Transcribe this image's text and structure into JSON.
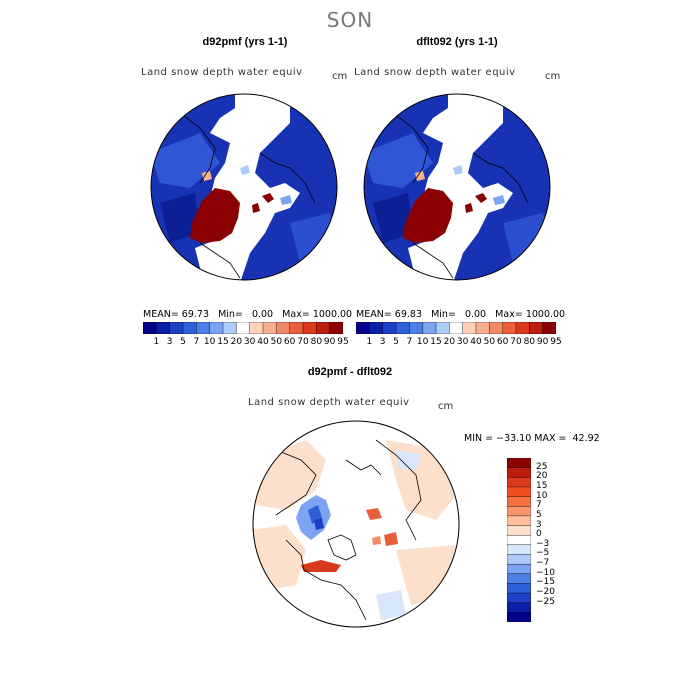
{
  "figure": {
    "season": "SON"
  },
  "panels": {
    "left": {
      "title": "d92pmf (yrs 1-1)",
      "variable": "Land snow depth water equiv",
      "units": "cm",
      "stats": {
        "mean_label": "MEAN=",
        "mean": "69.73",
        "min_label": "Min=",
        "min": "0.00",
        "max_label": "Max=",
        "max": "1000.00"
      }
    },
    "right": {
      "title": "dflt092 (yrs 1-1)",
      "variable": "Land snow depth water equiv",
      "units": "cm",
      "stats": {
        "mean_label": "MEAN=",
        "mean": "69.83",
        "min_label": "Min=",
        "min": "0.00",
        "max_label": "Max=",
        "max": "1000.00"
      }
    },
    "diff": {
      "title": "d92pmf - dflt092",
      "variable": "Land snow depth water equiv",
      "units": "cm",
      "stats_text": "MIN = −33.10 MAX =  42.92"
    }
  },
  "colorbars": {
    "absolute": {
      "labels": [
        "1",
        "3",
        "5",
        "7",
        "10",
        "15",
        "20",
        "30",
        "40",
        "50",
        "60",
        "70",
        "80",
        "90",
        "95"
      ],
      "colors": [
        "#00008b",
        "#0a1fa8",
        "#1f3fc9",
        "#2f5ed9",
        "#4d7fe6",
        "#7da4f2",
        "#aecbf7",
        "#ffffff",
        "#fcd2b8",
        "#f8b08f",
        "#f08a65",
        "#e85d3a",
        "#d93a1c",
        "#bb1c0c",
        "#8b0000"
      ]
    },
    "difference": {
      "labels": [
        "25",
        "20",
        "15",
        "10",
        "7",
        "5",
        "3",
        "0",
        "−3",
        "−5",
        "−7",
        "−10",
        "−15",
        "−20",
        "−25"
      ],
      "colors": [
        "#8b0000",
        "#bb1c0c",
        "#d93a1c",
        "#ee4e22",
        "#f4703f",
        "#f7966a",
        "#fbbf9d",
        "#fde0cc",
        "#ffffff",
        "#d8e7f9",
        "#aecbf7",
        "#7da4f2",
        "#4d7fe6",
        "#2f5ed9",
        "#1f3fc9",
        "#0a1fa8",
        "#00008b"
      ]
    }
  },
  "icons": {
    "polar-map": "north-polar-stereographic"
  }
}
